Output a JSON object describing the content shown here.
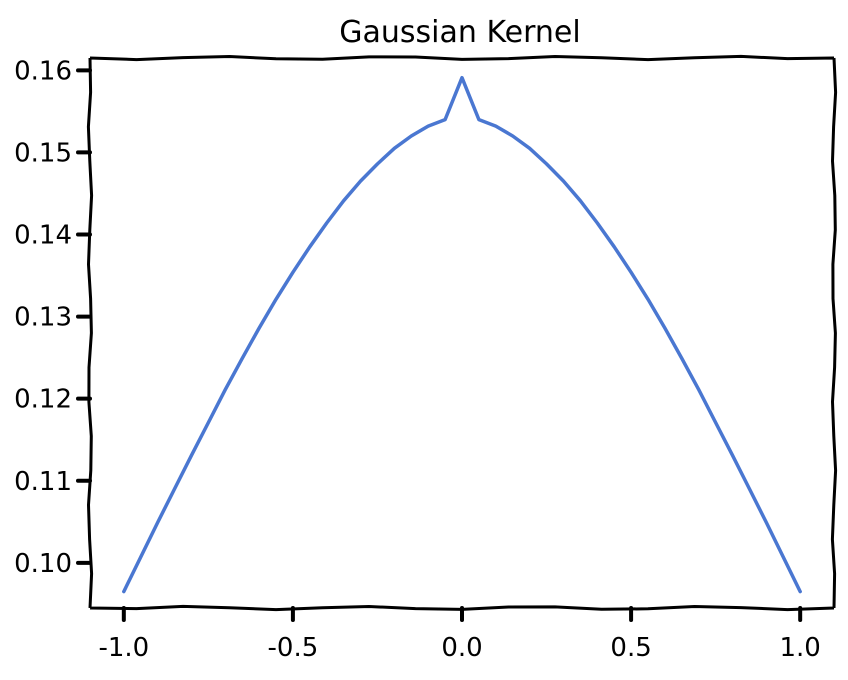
{
  "chart_data": {
    "type": "line",
    "title": "Gaussian Kernel",
    "xlabel": "",
    "ylabel": "",
    "xlim": [
      -1.1,
      1.1
    ],
    "ylim": [
      0.0945,
      0.1615
    ],
    "xticks": [
      -1.0,
      -0.5,
      0.0,
      0.5,
      1.0
    ],
    "xtick_labels": [
      "-1.0",
      "-0.5",
      "0.0",
      "0.5",
      "1.0"
    ],
    "yticks": [
      0.1,
      0.11,
      0.12,
      0.13,
      0.14,
      0.15,
      0.16
    ],
    "ytick_labels": [
      "0.10",
      "0.11",
      "0.12",
      "0.13",
      "0.14",
      "0.15",
      "0.16"
    ],
    "grid": false,
    "series": [
      {
        "color": "#4a77d1",
        "x": [
          -1.0,
          -0.95,
          -0.9,
          -0.85,
          -0.8,
          -0.75,
          -0.7,
          -0.65,
          -0.6,
          -0.55,
          -0.5,
          -0.45,
          -0.4,
          -0.35,
          -0.3,
          -0.25,
          -0.2,
          -0.15,
          -0.1,
          -0.05,
          0.0,
          0.05,
          0.1,
          0.15,
          0.2,
          0.25,
          0.3,
          0.35,
          0.4,
          0.45,
          0.5,
          0.55,
          0.6,
          0.65,
          0.7,
          0.75,
          0.8,
          0.85,
          0.9,
          0.95,
          1.0
        ],
        "y": [
          0.0965,
          0.1007,
          0.1049,
          0.109,
          0.1131,
          0.1171,
          0.1211,
          0.1249,
          0.1286,
          0.1321,
          0.1354,
          0.1385,
          0.1414,
          0.1441,
          0.1465,
          0.1486,
          0.1505,
          0.152,
          0.1532,
          0.154,
          0.1591,
          0.154,
          0.1532,
          0.152,
          0.1505,
          0.1486,
          0.1465,
          0.1441,
          0.1414,
          0.1385,
          0.1354,
          0.1321,
          0.1286,
          0.1249,
          0.1211,
          0.1171,
          0.1131,
          0.109,
          0.1049,
          0.1007,
          0.0965
        ]
      }
    ]
  }
}
